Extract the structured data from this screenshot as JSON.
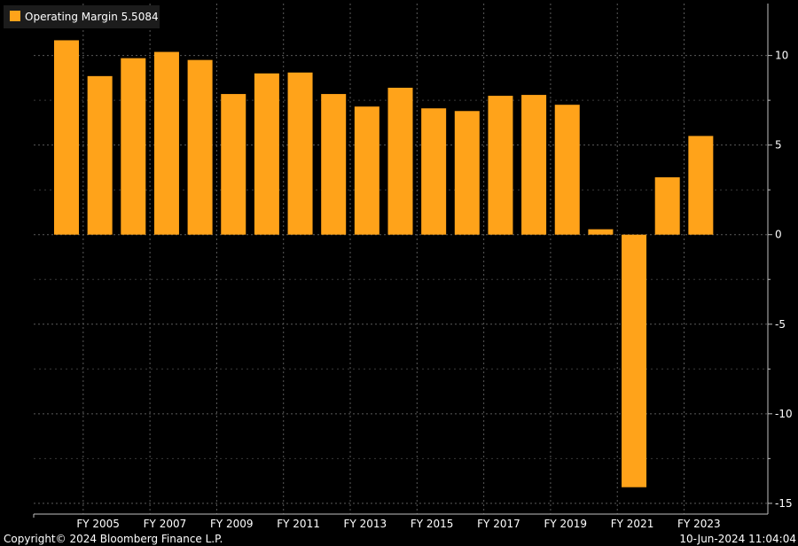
{
  "colors": {
    "background": "#000000",
    "bar": "#ffa31a",
    "grid": "#5a5a5a",
    "axis": "#bfbfbf",
    "text": "#ffffff",
    "legend_bg": "#1c1c1c"
  },
  "legend": {
    "label": "Operating Margin 5.5084"
  },
  "footer": {
    "copyright": "Copyright© 2024 Bloomberg Finance L.P.",
    "timestamp": "10-Jun-2024 11:04:04"
  },
  "chart_data": {
    "type": "bar",
    "categories": [
      "FY 2004",
      "FY 2005",
      "FY 2006",
      "FY 2007",
      "FY 2008",
      "FY 2009",
      "FY 2010",
      "FY 2011",
      "FY 2012",
      "FY 2013",
      "FY 2014",
      "FY 2015",
      "FY 2016",
      "FY 2017",
      "FY 2018",
      "FY 2019",
      "FY 2020",
      "FY 2021",
      "FY 2022",
      "FY 2023"
    ],
    "x_tick_labels": [
      "FY 2005",
      "FY 2007",
      "FY 2009",
      "FY 2011",
      "FY 2013",
      "FY 2015",
      "FY 2017",
      "FY 2019",
      "FY 2021",
      "FY 2023"
    ],
    "series": [
      {
        "name": "Operating Margin",
        "values": [
          10.85,
          8.85,
          9.85,
          10.2,
          9.75,
          7.85,
          9.0,
          9.05,
          7.85,
          7.15,
          8.2,
          7.05,
          6.9,
          7.75,
          7.8,
          7.25,
          0.3,
          -14.1,
          3.2,
          5.5084
        ]
      }
    ],
    "y_ticks": [
      10,
      5,
      0,
      -5,
      -10,
      -15
    ],
    "ylim": [
      -15.6,
      12.9
    ],
    "grid": true,
    "legend_position": "top-left",
    "title": "",
    "xlabel": "",
    "ylabel": ""
  }
}
